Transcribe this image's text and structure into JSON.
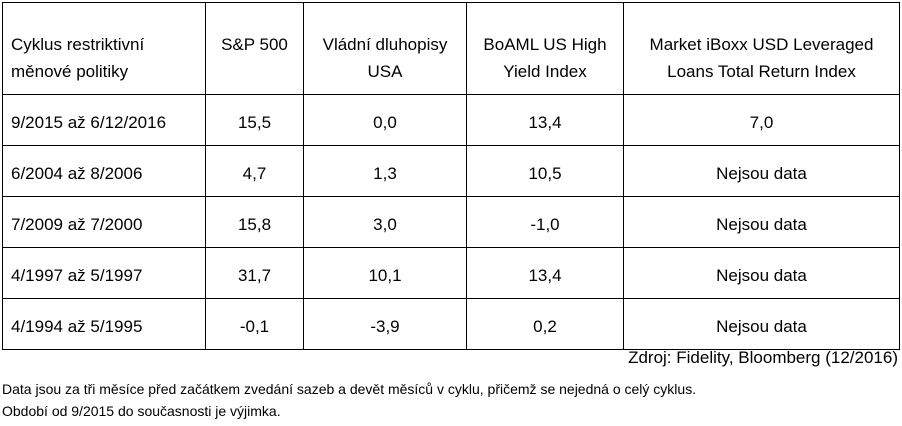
{
  "table": {
    "header": [
      [
        "Cyklus restriktivní",
        "měnové politiky"
      ],
      [
        "S&P 500"
      ],
      [
        "Vládní dluhopisy",
        "USA"
      ],
      [
        "BoAML US High",
        "Yield Index"
      ],
      [
        "Market iBoxx USD Leveraged",
        "Loans Total Return Index"
      ]
    ],
    "rows": [
      [
        "9/2015 až 6/12/2016",
        "15,5",
        "0,0",
        "13,4",
        "7,0"
      ],
      [
        "6/2004 až 8/2006",
        "4,7",
        "1,3",
        "10,5",
        "Nejsou data"
      ],
      [
        "7/2009 až 7/2000",
        "15,8",
        "3,0",
        "-1,0",
        "Nejsou data"
      ],
      [
        "4/1997 až 5/1997",
        "31,7",
        "10,1",
        "13,4",
        "Nejsou data"
      ],
      [
        "4/1994 až 5/1995",
        "-0,1",
        "-3,9",
        "0,2",
        "Nejsou data"
      ]
    ]
  },
  "source": "Zdroj: Fidelity, Bloomberg (12/2016)",
  "notes": [
    "Data jsou za tři měsíce před začátkem zvedání sazeb a devět měsíců v cyklu, přičemž se nejedná o celý cyklus.",
    "Období od 9/2015 do současnosti je výjimka."
  ]
}
